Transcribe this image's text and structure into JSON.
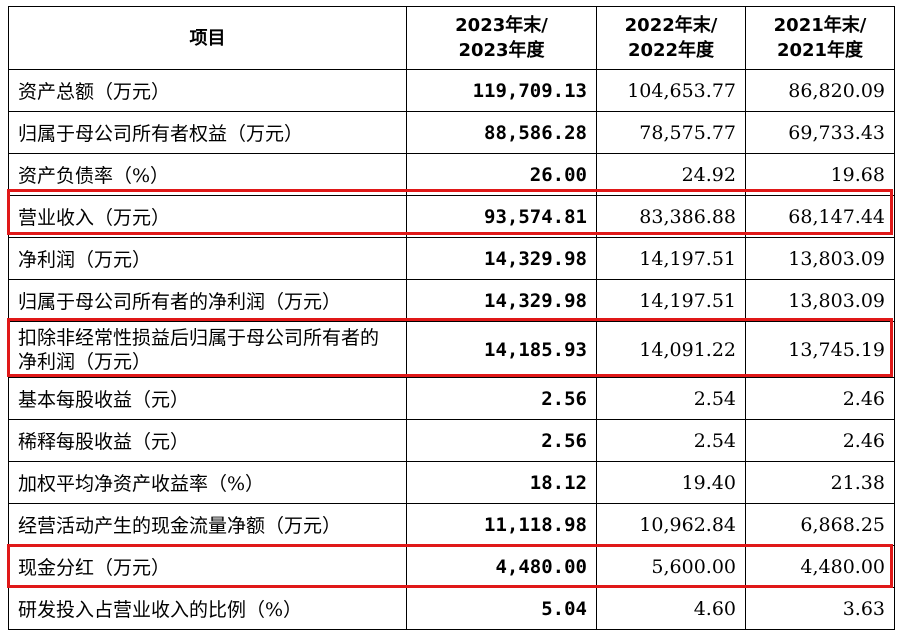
{
  "table": {
    "headers": [
      "项目",
      "2023年末/\n2023年度",
      "2022年末/\n2022年度",
      "2021年末/\n2021年度"
    ],
    "rows": [
      {
        "label": "资产总额（万元）",
        "v2023": "119,709.13",
        "v2022": "104,653.77",
        "v2021": "86,820.09"
      },
      {
        "label": "归属于母公司所有者权益（万元）",
        "v2023": "88,586.28",
        "v2022": "78,575.77",
        "v2021": "69,733.43"
      },
      {
        "label": "资产负债率（%）",
        "v2023": "26.00",
        "v2022": "24.92",
        "v2021": "19.68"
      },
      {
        "label": "营业收入（万元）",
        "v2023": "93,574.81",
        "v2022": "83,386.88",
        "v2021": "68,147.44"
      },
      {
        "label": "净利润（万元）",
        "v2023": "14,329.98",
        "v2022": "14,197.51",
        "v2021": "13,803.09"
      },
      {
        "label": "归属于母公司所有者的净利润（万元）",
        "v2023": "14,329.98",
        "v2022": "14,197.51",
        "v2021": "13,803.09"
      },
      {
        "label": "扣除非经常性损益后归属于母公司所有者的净利润（万元）",
        "v2023": "14,185.93",
        "v2022": "14,091.22",
        "v2021": "13,745.19"
      },
      {
        "label": "基本每股收益（元）",
        "v2023": "2.56",
        "v2022": "2.54",
        "v2021": "2.46"
      },
      {
        "label": "稀释每股收益（元）",
        "v2023": "2.56",
        "v2022": "2.54",
        "v2021": "2.46"
      },
      {
        "label": "加权平均净资产收益率（%）",
        "v2023": "18.12",
        "v2022": "19.40",
        "v2021": "21.38"
      },
      {
        "label": "经营活动产生的现金流量净额（万元）",
        "v2023": "11,118.98",
        "v2022": "10,962.84",
        "v2021": "6,868.25"
      },
      {
        "label": "现金分红（万元）",
        "v2023": "4,480.00",
        "v2022": "5,600.00",
        "v2021": "4,480.00"
      },
      {
        "label": "研发投入占营业收入的比例（%）",
        "v2023": "5.04",
        "v2022": "4.60",
        "v2021": "3.63"
      }
    ]
  },
  "highlight": {
    "color": "#e01818"
  }
}
